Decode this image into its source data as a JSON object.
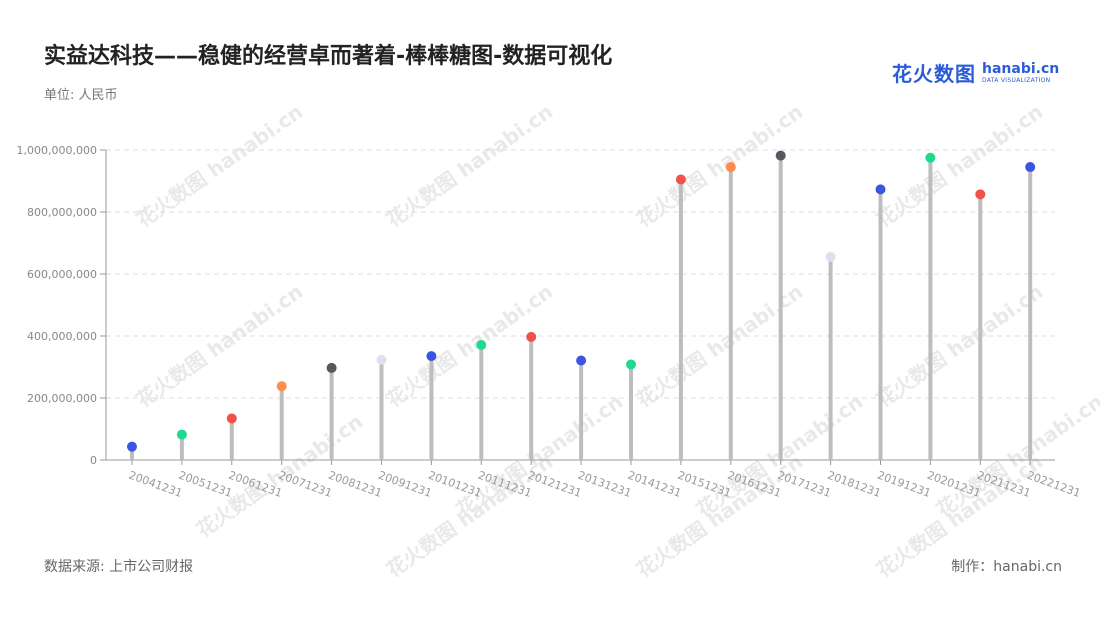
{
  "title": "实益达科技——稳健的经营卓而著着-棒棒糖图-数据可视化",
  "unit_label": "单位: 人民币",
  "source_label": "数据来源: 上市公司财报",
  "credit_label": "制作：hanabi.cn",
  "logo": {
    "cn": "花火数图",
    "en": "hanabi.cn",
    "sub": "DATA VISUALIZATION"
  },
  "watermark_text": "花火数图 hanabi.cn",
  "colors": {
    "stem": "#bdbdbd",
    "grid": "#dddddd",
    "axis": "#999999",
    "tick_text": "#888888",
    "x_tick_text": "#999999",
    "brand": "#2b5cd8"
  },
  "chart_data": {
    "type": "lollipop",
    "title": "实益达科技——稳健的经营卓而著着-棒棒糖图-数据可视化",
    "ylabel": "单位: 人民币",
    "ylim": [
      0,
      1000000000
    ],
    "yticks": [
      0,
      200000000,
      400000000,
      600000000,
      800000000,
      1000000000
    ],
    "ytick_labels": [
      "0",
      "200,000,000",
      "400,000,000",
      "600,000,000",
      "800,000,000",
      "1,000,000,000"
    ],
    "grid": true,
    "categories": [
      "20041231",
      "20051231",
      "20061231",
      "20071231",
      "20081231",
      "20091231",
      "20101231",
      "20111231",
      "20121231",
      "20131231",
      "20141231",
      "20151231",
      "20161231",
      "20171231",
      "20181231",
      "20191231",
      "20201231",
      "20211231",
      "20221231"
    ],
    "values": [
      43000000,
      82000000,
      134000000,
      238000000,
      297000000,
      323000000,
      335000000,
      371000000,
      397000000,
      321000000,
      308000000,
      905000000,
      945000000,
      982000000,
      655000000,
      873000000,
      975000000,
      857000000,
      945000000
    ],
    "dot_colors": [
      "#3a56e0",
      "#1ddb8e",
      "#f0524a",
      "#ff8c4a",
      "#58565e",
      "#dde0ef",
      "#3a56e0",
      "#1ddb8e",
      "#f0524a",
      "#3a56e0",
      "#1ddb8e",
      "#f0524a",
      "#ff8c4a",
      "#58565e",
      "#dde0ef",
      "#3a56e0",
      "#1ddb8e",
      "#f0524a",
      "#3a56e0"
    ]
  }
}
